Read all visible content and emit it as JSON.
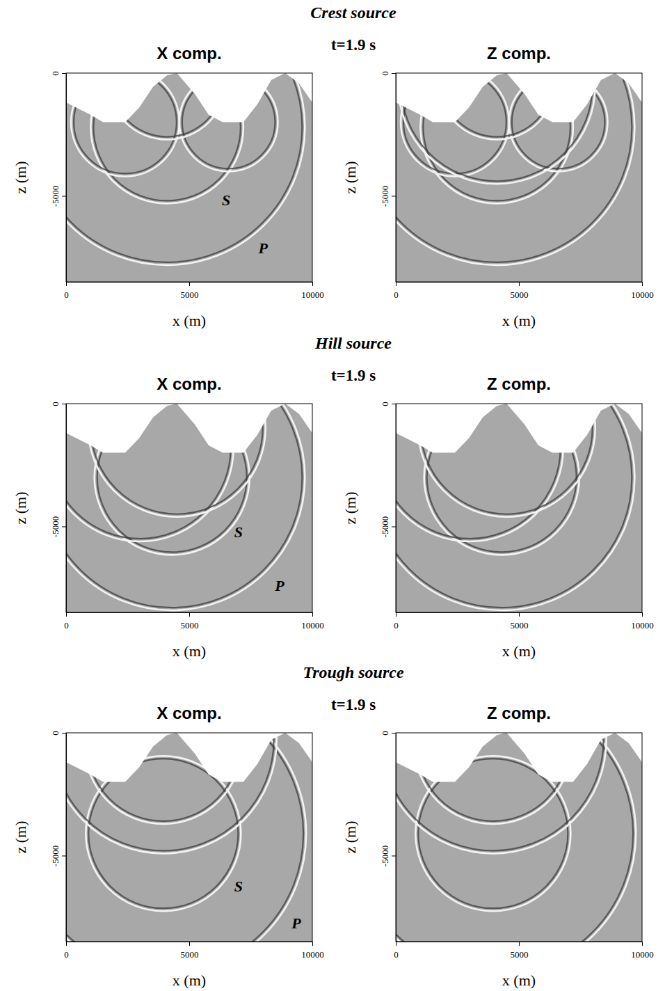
{
  "headings": [
    {
      "source": "Crest source",
      "time": "t=1.9 s"
    },
    {
      "source": "Hill source",
      "time": "t=1.9 s"
    },
    {
      "source": "Trough source",
      "time": "t=1.9 s"
    }
  ],
  "chart_data": [
    {
      "type": "wavefield",
      "title": "X comp.",
      "x_label": "x (m)",
      "y_label": "z (m)",
      "xlim": [
        0,
        10000
      ],
      "ylim": [
        -8500,
        0
      ],
      "xticks": [
        0,
        5000,
        10000
      ],
      "yticks": [
        0,
        -5000
      ],
      "topography": {
        "x": [
          0,
          1000,
          1500,
          2400,
          2970,
          3530,
          4100,
          4500,
          5230,
          5790,
          6360,
          7200,
          7770,
          8330,
          8900,
          9460,
          10000
        ],
        "z": [
          -1200,
          -1700,
          -2000,
          -2000,
          -1400,
          -560,
          -90,
          0,
          -850,
          -1700,
          -2000,
          -2000,
          -1270,
          -280,
          0,
          -420,
          -1200
        ]
      },
      "wavefronts": [
        {
          "x": 4100,
          "z": -2200,
          "r": 3100
        },
        {
          "x": 4100,
          "z": -2200,
          "r": 5600
        },
        {
          "x": 2400,
          "z": -2000,
          "r": 2200
        },
        {
          "x": 6600,
          "z": -2000,
          "r": 2000
        },
        {
          "x": 4100,
          "z": -300,
          "r": 2400
        }
      ],
      "annotations": [
        {
          "text": "S",
          "x": 6500,
          "z": -5230
        },
        {
          "text": "P",
          "x": 8000,
          "z": -7200
        }
      ]
    },
    {
      "type": "wavefield",
      "title": "Z comp.",
      "x_label": "x (m)",
      "y_label": "z (m)",
      "xlim": [
        0,
        10000
      ],
      "ylim": [
        -8500,
        0
      ],
      "xticks": [
        0,
        5000,
        10000
      ],
      "yticks": [
        0,
        -5000
      ],
      "topography": {
        "x": [
          0,
          1000,
          1500,
          2400,
          2970,
          3530,
          4100,
          4500,
          5230,
          5790,
          6360,
          7200,
          7770,
          8330,
          8900,
          9460,
          10000
        ],
        "z": [
          -1200,
          -1700,
          -2000,
          -2000,
          -1400,
          -560,
          -90,
          0,
          -850,
          -1700,
          -2000,
          -2000,
          -1270,
          -280,
          0,
          -420,
          -1200
        ]
      },
      "wavefronts": [
        {
          "x": 4100,
          "z": -2200,
          "r": 3100
        },
        {
          "x": 4100,
          "z": -2200,
          "r": 5600
        },
        {
          "x": 2400,
          "z": -2000,
          "r": 2200
        },
        {
          "x": 6600,
          "z": -2000,
          "r": 2000
        },
        {
          "x": 4100,
          "z": -300,
          "r": 2400
        },
        {
          "x": 4100,
          "z": -500,
          "r": 4000
        }
      ]
    },
    {
      "type": "wavefield",
      "title": "X comp.",
      "x_label": "x (m)",
      "y_label": "z (m)",
      "xlim": [
        0,
        10000
      ],
      "ylim": [
        -8500,
        0
      ],
      "xticks": [
        0,
        5000,
        10000
      ],
      "yticks": [
        0,
        -5000
      ],
      "topography": {
        "x": [
          0,
          1000,
          1500,
          2400,
          2970,
          3530,
          4100,
          4500,
          5230,
          5790,
          6360,
          7200,
          7770,
          8330,
          8900,
          9460,
          10000
        ],
        "z": [
          -1200,
          -1700,
          -2000,
          -2000,
          -1400,
          -560,
          -90,
          0,
          -850,
          -1700,
          -2000,
          -2000,
          -1270,
          -280,
          0,
          -420,
          -1200
        ]
      },
      "wavefronts": [
        {
          "x": 4300,
          "z": -3000,
          "r": 3150
        },
        {
          "x": 4300,
          "z": -3000,
          "r": 5400
        },
        {
          "x": 3000,
          "z": -1800,
          "r": 3800
        },
        {
          "x": 4500,
          "z": -1000,
          "r": 3600
        }
      ],
      "annotations": [
        {
          "text": "S",
          "x": 7000,
          "z": -5310
        },
        {
          "text": "P",
          "x": 8670,
          "z": -7490
        }
      ]
    },
    {
      "type": "wavefield",
      "title": "Z comp.",
      "x_label": "x (m)",
      "y_label": "z (m)",
      "xlim": [
        0,
        10000
      ],
      "ylim": [
        -8500,
        0
      ],
      "xticks": [
        0,
        5000,
        10000
      ],
      "yticks": [
        0,
        -5000
      ],
      "topography": {
        "x": [
          0,
          1000,
          1500,
          2400,
          2970,
          3530,
          4100,
          4500,
          5230,
          5790,
          6360,
          7200,
          7770,
          8330,
          8900,
          9460,
          10000
        ],
        "z": [
          -1200,
          -1700,
          -2000,
          -2000,
          -1400,
          -560,
          -90,
          0,
          -850,
          -1700,
          -2000,
          -2000,
          -1270,
          -280,
          0,
          -420,
          -1200
        ]
      },
      "wavefronts": [
        {
          "x": 4300,
          "z": -3000,
          "r": 3150
        },
        {
          "x": 4300,
          "z": -3000,
          "r": 5400
        },
        {
          "x": 3000,
          "z": -1800,
          "r": 3800
        },
        {
          "x": 4500,
          "z": -1000,
          "r": 3600
        }
      ]
    },
    {
      "type": "wavefield",
      "title": "X comp.",
      "x_label": "x (m)",
      "y_label": "z (m)",
      "xlim": [
        0,
        10000
      ],
      "ylim": [
        -8500,
        0
      ],
      "xticks": [
        0,
        5000,
        10000
      ],
      "yticks": [
        0,
        -5000
      ],
      "topography": {
        "x": [
          0,
          1000,
          1500,
          2400,
          2970,
          3530,
          4100,
          4500,
          5230,
          5790,
          6360,
          7200,
          7770,
          8330,
          8900,
          9460,
          10000
        ],
        "z": [
          -1200,
          -1700,
          -2000,
          -2000,
          -1400,
          -560,
          -90,
          0,
          -850,
          -1700,
          -2000,
          -2000,
          -1270,
          -280,
          0,
          -420,
          -1200
        ]
      },
      "wavefronts": [
        {
          "x": 3950,
          "z": -4100,
          "r": 3150
        },
        {
          "x": 3950,
          "z": -4100,
          "r": 5800
        },
        {
          "x": 3950,
          "z": -500,
          "r": 3200
        },
        {
          "x": 3950,
          "z": -300,
          "r": 4600
        }
      ],
      "annotations": [
        {
          "text": "S",
          "x": 7000,
          "z": -6330
        },
        {
          "text": "P",
          "x": 9350,
          "z": -7820
        }
      ]
    },
    {
      "type": "wavefield",
      "title": "Z comp.",
      "x_label": "x (m)",
      "y_label": "z (m)",
      "xlim": [
        0,
        10000
      ],
      "ylim": [
        -8500,
        0
      ],
      "xticks": [
        0,
        5000,
        10000
      ],
      "yticks": [
        0,
        -5000
      ],
      "topography": {
        "x": [
          0,
          1000,
          1500,
          2400,
          2970,
          3530,
          4100,
          4500,
          5230,
          5790,
          6360,
          7200,
          7770,
          8330,
          8900,
          9460,
          10000
        ],
        "z": [
          -1200,
          -1700,
          -2000,
          -2000,
          -1400,
          -560,
          -90,
          0,
          -850,
          -1700,
          -2000,
          -2000,
          -1270,
          -280,
          0,
          -420,
          -1200
        ]
      },
      "wavefronts": [
        {
          "x": 3950,
          "z": -4100,
          "r": 3150
        },
        {
          "x": 3950,
          "z": -4100,
          "r": 5800
        },
        {
          "x": 3950,
          "z": -500,
          "r": 3200
        },
        {
          "x": 3950,
          "z": -300,
          "r": 4600
        }
      ]
    }
  ]
}
